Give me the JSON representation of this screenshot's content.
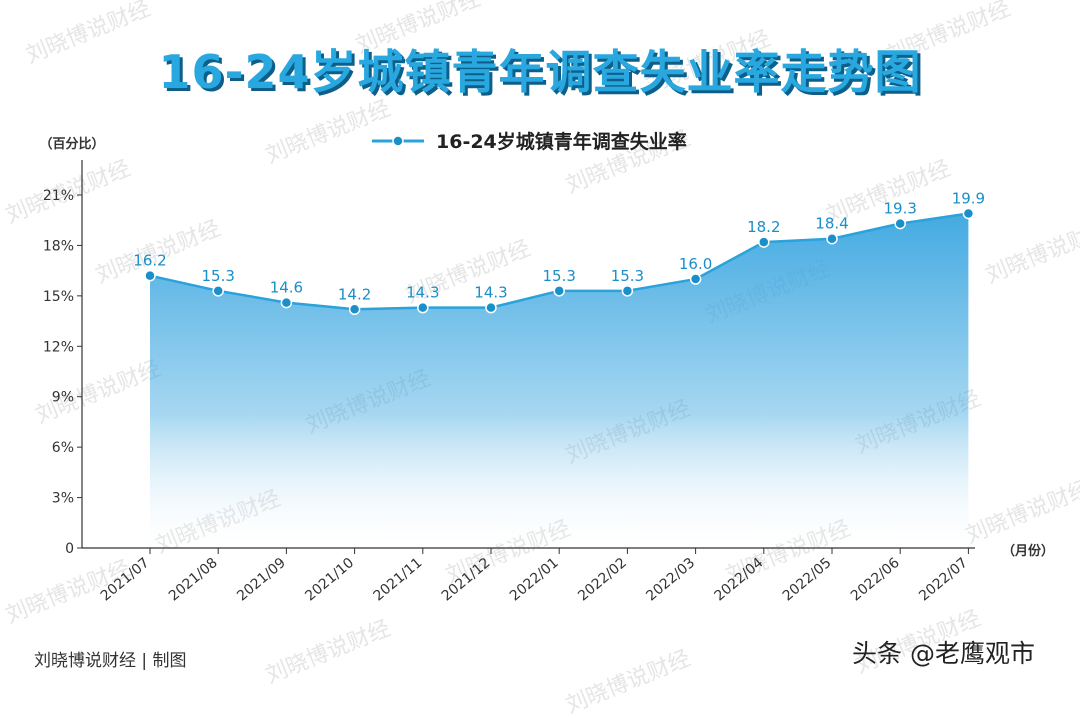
{
  "title": "16-24岁城镇青年调查失业率走势图",
  "watermark": "刘晓博说财经",
  "footer_left": "刘晓博说财经 | 制图",
  "footer_right": "头条 @老鹰观市",
  "colors": {
    "line": "#29a3d9",
    "point": "#1a8fc9",
    "area_top": "#3aa6e0",
    "label": "#1a8fc9"
  },
  "chart_data": {
    "type": "area",
    "legend": "16-24岁城镇青年调查失业率",
    "legend_position": "top-center",
    "y_unit_label": "（百分比）",
    "x_unit_label": "（月份）",
    "categories": [
      "2021/07",
      "2021/08",
      "2021/09",
      "2021/10",
      "2021/11",
      "2021/12",
      "2022/01",
      "2022/02",
      "2022/03",
      "2022/04",
      "2022/05",
      "2022/06",
      "2022/07"
    ],
    "series": [
      {
        "name": "16-24岁城镇青年调查失业率",
        "values": [
          16.2,
          15.3,
          14.6,
          14.2,
          14.3,
          14.3,
          15.3,
          15.3,
          16.0,
          18.2,
          18.4,
          19.3,
          19.9
        ],
        "value_labels": [
          "16.2",
          "15.3",
          "14.6",
          "14.2",
          "14.3",
          "14.3",
          "15.3",
          "15.3",
          "16.0",
          "18.2",
          "18.4",
          "19.3",
          "19.9"
        ]
      }
    ],
    "yticks": [
      0,
      3,
      6,
      9,
      12,
      15,
      18,
      21
    ],
    "ytick_labels": [
      "0",
      "3%",
      "6%",
      "9%",
      "12%",
      "15%",
      "18%",
      "21%"
    ],
    "ylim": [
      0,
      22.5
    ],
    "grid": false
  }
}
